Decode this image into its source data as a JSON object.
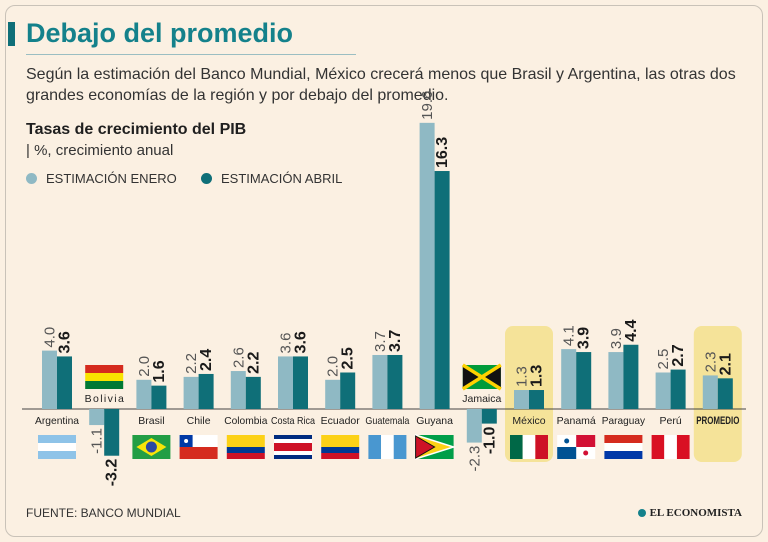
{
  "header": {
    "title": "Debajo del promedio",
    "subtitle": "Según la estimación del Banco Mundial, México crecerá menos que Brasil y Argentina, las otras dos grandes economías de la región y por debajo del promedio.",
    "chart_title": "Tasas de crecimiento del PIB",
    "unit": "| %, crecimiento anual"
  },
  "legend": {
    "jan_label": "ESTIMACIÓN ENERO",
    "apr_label": "ESTIMACIÓN ABRIL"
  },
  "footer": {
    "source": "FUENTE: BANCO MUNDIAL",
    "brand": "EL ECONOMISTA"
  },
  "colors": {
    "background": "#fbf0e2",
    "title": "#14818b",
    "jan_series": "#8fb9c4",
    "apr_series": "#0f6f78",
    "highlight": "#f3e08c"
  },
  "chart_data": {
    "type": "bar",
    "title": "Tasas de crecimiento del PIB",
    "ylabel": "%, crecimiento anual",
    "categories": [
      "Argentina",
      "Bolivia",
      "Brasil",
      "Chile",
      "Colombia",
      "Costa Rica",
      "Ecuador",
      "Guatemala",
      "Guyana",
      "Jamaica",
      "México",
      "Panamá",
      "Paraguay",
      "Perú",
      "PROMEDIO"
    ],
    "series": [
      {
        "name": "ESTIMACIÓN ENERO",
        "values": [
          4.0,
          -1.1,
          2.0,
          2.2,
          2.6,
          3.6,
          2.0,
          3.7,
          19.6,
          -2.3,
          1.3,
          4.1,
          3.9,
          2.5,
          2.3
        ]
      },
      {
        "name": "ESTIMACIÓN ABRIL",
        "values": [
          3.6,
          -3.2,
          1.6,
          2.4,
          2.2,
          3.6,
          2.5,
          3.7,
          16.3,
          -1.0,
          1.3,
          3.9,
          4.4,
          2.7,
          2.1
        ]
      }
    ],
    "highlighted": [
      "México",
      "PROMEDIO"
    ],
    "legend_position": "top-left",
    "grid": false
  }
}
